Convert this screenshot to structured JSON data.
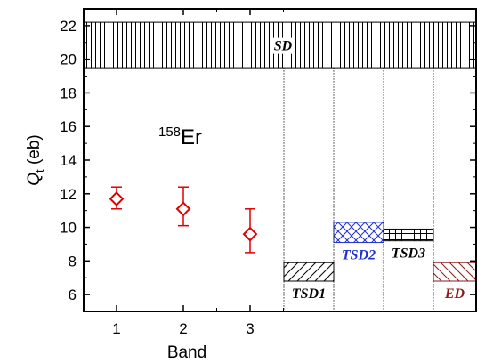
{
  "chart_data": {
    "type": "scatter",
    "xlabel": "Band",
    "ylabel": "Q",
    "ylabel_subscript": "t",
    "ylabel_unit": " (eb)",
    "ylim": [
      5,
      23
    ],
    "x_ticks": [
      1,
      2,
      3
    ],
    "x_tick_labels": [
      "1",
      "2",
      "3"
    ],
    "y_ticks": [
      6,
      8,
      10,
      12,
      14,
      16,
      18,
      20,
      22
    ],
    "y_tick_labels": [
      "6",
      "8",
      "10",
      "12",
      "14",
      "16",
      "18",
      "20",
      "22"
    ],
    "annotation": {
      "mass": "158",
      "element": "Er"
    },
    "points": [
      {
        "band": 1,
        "qt": 11.7,
        "err_low": 11.1,
        "err_high": 12.4
      },
      {
        "band": 2,
        "qt": 11.1,
        "err_low": 10.1,
        "err_high": 12.4
      },
      {
        "band": 3,
        "qt": 9.6,
        "err_low": 8.5,
        "err_high": 11.1
      }
    ],
    "point_color": "#e00000",
    "bands": [
      {
        "label": "SD",
        "ymin": 19.5,
        "ymax": 22.2,
        "pattern": "vertical",
        "color": "#000000",
        "span": "full"
      },
      {
        "label": "TSD1",
        "ymin": 6.8,
        "ymax": 7.9,
        "pattern": "diagonal-up",
        "color": "#000000",
        "column": 0
      },
      {
        "label": "TSD2",
        "ymin": 9.1,
        "ymax": 10.3,
        "pattern": "crosshatch",
        "color": "#1f2fd0",
        "column": 1
      },
      {
        "label": "TSD3",
        "ymin": 9.2,
        "ymax": 9.9,
        "pattern": "grid",
        "color": "#000000",
        "column": 2
      },
      {
        "label": "ED",
        "ymin": 6.8,
        "ymax": 7.9,
        "pattern": "diagonal-down",
        "color": "#8b1a1a",
        "column": 3
      }
    ]
  }
}
